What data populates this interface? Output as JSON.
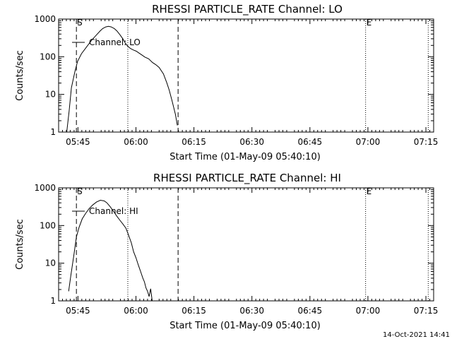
{
  "footer": {
    "timestamp": "14-Oct-2021 14:41"
  },
  "chart_data": [
    {
      "type": "line",
      "title": "RHESSI PARTICLE_RATE Channel: LO",
      "xlabel": "Start Time (01-May-09 05:40:10)",
      "ylabel": "Counts/sec",
      "scale_y": "log",
      "xlim_min": [
        0.0,
        97.0
      ],
      "ylim": [
        1,
        1000
      ],
      "x_ticks": [
        {
          "t": 5,
          "label": "05:45"
        },
        {
          "t": 20,
          "label": "06:00"
        },
        {
          "t": 35,
          "label": "06:15"
        },
        {
          "t": 50,
          "label": "06:30"
        },
        {
          "t": 65,
          "label": "06:45"
        },
        {
          "t": 80,
          "label": "07:00"
        },
        {
          "t": 95,
          "label": "07:15"
        }
      ],
      "y_ticks": [
        {
          "v": 1,
          "label": "1"
        },
        {
          "v": 10,
          "label": "10"
        },
        {
          "v": 100,
          "label": "100"
        },
        {
          "v": 1000,
          "label": "1000"
        }
      ],
      "markers": [
        {
          "t": 4.6,
          "style": "dashed",
          "label": "S"
        },
        {
          "t": 17.9,
          "style": "dotted",
          "label": ""
        },
        {
          "t": 30.9,
          "style": "dashed",
          "label": ""
        },
        {
          "t": 79.4,
          "style": "dotted",
          "label": "E"
        },
        {
          "t": 95.6,
          "style": "dotted",
          "label": ""
        }
      ],
      "series": [
        {
          "name": "Channel: LO",
          "x_min": [
            2.1,
            2.7,
            3.3,
            4.2,
            4.9,
            5.9,
            7.2,
            8.5,
            9.8,
            10.7,
            11.4,
            12.2,
            12.9,
            13.6,
            14.4,
            15.1,
            15.9,
            16.6,
            17.3,
            17.9,
            18.6,
            19.4,
            20.1,
            20.8,
            21.6,
            22.3,
            23.3,
            24.3,
            25.1,
            26.0,
            27.1,
            28.0,
            28.6,
            29.3,
            30.2,
            30.7
          ],
          "y": [
            1,
            3.5,
            15,
            40,
            75,
            120,
            180,
            270,
            380,
            480,
            560,
            620,
            640,
            620,
            560,
            480,
            380,
            300,
            225,
            190,
            165,
            150,
            140,
            125,
            110,
            98,
            88,
            70,
            62,
            52,
            35,
            20,
            13,
            7,
            3,
            1.5
          ]
        }
      ]
    },
    {
      "type": "line",
      "title": "RHESSI PARTICLE_RATE Channel: HI",
      "xlabel": "Start Time (01-May-09 05:40:10)",
      "ylabel": "Counts/sec",
      "scale_y": "log",
      "xlim_min": [
        0.0,
        97.0
      ],
      "ylim": [
        1,
        1000
      ],
      "x_ticks": [
        {
          "t": 5,
          "label": "05:45"
        },
        {
          "t": 20,
          "label": "06:00"
        },
        {
          "t": 35,
          "label": "06:15"
        },
        {
          "t": 50,
          "label": "06:30"
        },
        {
          "t": 65,
          "label": "06:45"
        },
        {
          "t": 80,
          "label": "07:00"
        },
        {
          "t": 95,
          "label": "07:15"
        }
      ],
      "y_ticks": [
        {
          "v": 1,
          "label": "1"
        },
        {
          "v": 10,
          "label": "10"
        },
        {
          "v": 100,
          "label": "100"
        },
        {
          "v": 1000,
          "label": "1000"
        }
      ],
      "markers": [
        {
          "t": 4.6,
          "style": "dashed",
          "label": "S"
        },
        {
          "t": 17.9,
          "style": "dotted",
          "label": ""
        },
        {
          "t": 30.9,
          "style": "dashed",
          "label": ""
        },
        {
          "t": 79.4,
          "style": "dotted",
          "label": "E"
        },
        {
          "t": 95.6,
          "style": "dotted",
          "label": ""
        }
      ],
      "series": [
        {
          "name": "Channel: HI",
          "x_min": [
            2.6,
            3.2,
            3.9,
            4.6,
            5.3,
            6.1,
            7.0,
            7.9,
            8.8,
            9.8,
            10.8,
            11.8,
            12.5,
            13.3,
            14.2,
            15.0,
            15.8,
            16.6,
            17.4,
            18.1,
            18.8,
            19.4,
            20.0,
            20.6,
            21.2,
            21.8,
            22.2,
            22.6,
            23.0,
            23.4,
            23.8,
            24.2
          ],
          "y": [
            1.8,
            5,
            15,
            50,
            90,
            150,
            210,
            280,
            350,
            420,
            470,
            450,
            400,
            320,
            240,
            180,
            140,
            110,
            85,
            55,
            35,
            20,
            14,
            9,
            6,
            4,
            3.2,
            2.2,
            1.8,
            1.3,
            2.1,
            1
          ]
        }
      ]
    }
  ]
}
